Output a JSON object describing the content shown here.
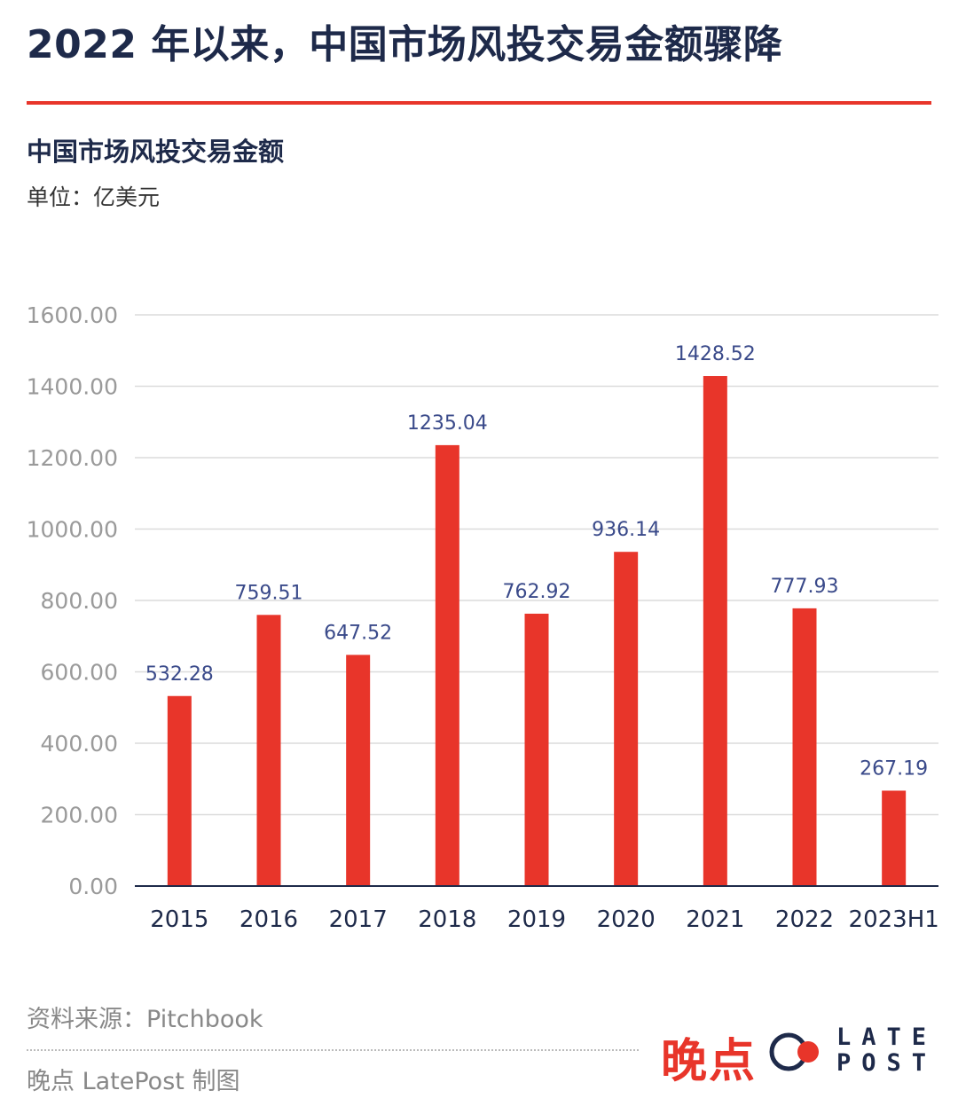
{
  "headline": "2022 年以来，中国市场风投交易金额骤降",
  "subtitle": "中国市场风投交易金额",
  "unit_label": "单位：亿美元",
  "source": "资料来源：Pitchbook",
  "credit": "晚点 LatePost 制图",
  "logo": {
    "cn": "晚点",
    "en_top": "LATE",
    "en_bottom": "POST"
  },
  "colors": {
    "bar": "#e8352a",
    "value_label": "#3a4a8a",
    "grid": "#dcdcdc",
    "axis": "#1e2a4a"
  },
  "chart_data": {
    "type": "bar",
    "title": "中国市场风投交易金额",
    "ylabel": "亿美元",
    "xlabel": "",
    "ylim": [
      0,
      1600
    ],
    "yticks": [
      "0.00",
      "200.00",
      "400.00",
      "600.00",
      "800.00",
      "1000.00",
      "1200.00",
      "1400.00",
      "1600.00"
    ],
    "categories": [
      "2015",
      "2016",
      "2017",
      "2018",
      "2019",
      "2020",
      "2021",
      "2022",
      "2023H1"
    ],
    "values": [
      532.28,
      759.51,
      647.52,
      1235.04,
      762.92,
      936.14,
      1428.52,
      777.93,
      267.19
    ],
    "labels": [
      "532.28",
      "759.51",
      "647.52",
      "1235.04",
      "762.92",
      "936.14",
      "1428.52",
      "777.93",
      "267.19"
    ],
    "grid": true
  }
}
